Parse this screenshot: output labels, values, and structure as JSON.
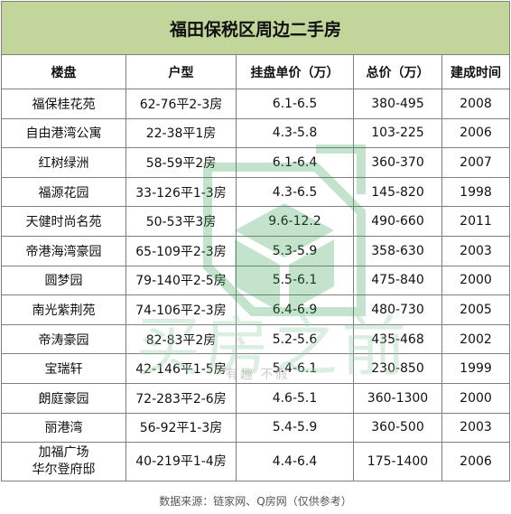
{
  "title": "福田保税区周边二手房",
  "columns": [
    "楼盘",
    "户型",
    "挂盘单价（万）",
    "总价（万）",
    "建成时间"
  ],
  "rows": [
    {
      "name": "福保桂花苑",
      "layout": "62-76平2-3房",
      "unit_price": "6.1-6.5",
      "total": "380-495",
      "year": "2008"
    },
    {
      "name": "自由港湾公寓",
      "layout": "22-38平1房",
      "unit_price": "4.3-5.8",
      "total": "103-225",
      "year": "2006"
    },
    {
      "name": "红树绿洲",
      "layout": "58-59平2房",
      "unit_price": "6.1-6.4",
      "total": "360-370",
      "year": "2007"
    },
    {
      "name": "福源花园",
      "layout": "33-126平1-3房",
      "unit_price": "4.3-6.5",
      "total": "145-820",
      "year": "1998"
    },
    {
      "name": "天健时尚名苑",
      "layout": "50-53平3房",
      "unit_price": "9.6-12.2",
      "total": "490-660",
      "year": "2011"
    },
    {
      "name": "帝港海湾豪园",
      "layout": "65-109平2-3房",
      "unit_price": "5.3-5.9",
      "total": "358-630",
      "year": "2003"
    },
    {
      "name": "圆梦园",
      "layout": "79-140平2-5房",
      "unit_price": "5.5-6.1",
      "total": "475-840",
      "year": "2000"
    },
    {
      "name": "南光紫荆苑",
      "layout": "74-106平2-3房",
      "unit_price": "6.4-6.9",
      "total": "480-730",
      "year": "2005"
    },
    {
      "name": "帝涛豪园",
      "layout": "82-83平2房",
      "unit_price": "5.2-5.6",
      "total": "435-468",
      "year": "2002"
    },
    {
      "name": "宝瑞轩",
      "layout": "42-146平1-5房",
      "unit_price": "5.4-6.1",
      "total": "230-850",
      "year": "1999"
    },
    {
      "name": "朗庭豪园",
      "layout": "72-283平2-6房",
      "unit_price": "4.6-5.1",
      "total": "360-1300",
      "year": "2000"
    },
    {
      "name": "丽港湾",
      "layout": "56-92平1-3房",
      "unit_price": "5.4-5.9",
      "total": "360-500",
      "year": "2003"
    }
  ],
  "last_row": {
    "name_line1": "加福广场",
    "name_line2": "华尔登府邸",
    "layout": "40-219平1-4房",
    "unit_price": "4.4-6.4",
    "total": "175-1400",
    "year": "2006"
  },
  "source": "数据来源：链家网、Q房网（仅供参考）",
  "watermark": {
    "text": "买房之前",
    "sub": "有趣 不假",
    "icon": "house-box-watermark-icon"
  },
  "colors": {
    "title_bg": "#c2d69b",
    "border": "#7f7f7f",
    "watermark": "#2e9e4f"
  }
}
